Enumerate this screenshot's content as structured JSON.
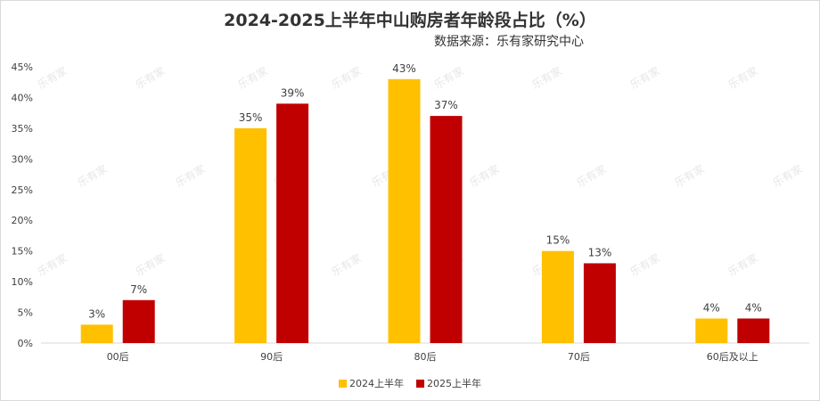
{
  "chart_data": {
    "type": "bar",
    "title": "2024-2025上半年中山购房者年龄段占比（%）",
    "subtitle": "数据来源：乐有家研究中心",
    "categories": [
      "00后",
      "90后",
      "80后",
      "70后",
      "60后及以上"
    ],
    "series": [
      {
        "name": "2024上半年",
        "values": [
          3,
          35,
          43,
          15,
          4
        ],
        "color": "#FFC000"
      },
      {
        "name": "2025上半年",
        "values": [
          7,
          39,
          37,
          13,
          4
        ],
        "color": "#C00000"
      }
    ],
    "ylim": [
      0,
      45
    ],
    "y_ticks": [
      0,
      5,
      10,
      15,
      20,
      25,
      30,
      35,
      40,
      45
    ],
    "y_tick_suffix": "%",
    "data_label_suffix": "%",
    "watermark": "乐有家",
    "grid": false,
    "legend_position": "bottom"
  }
}
